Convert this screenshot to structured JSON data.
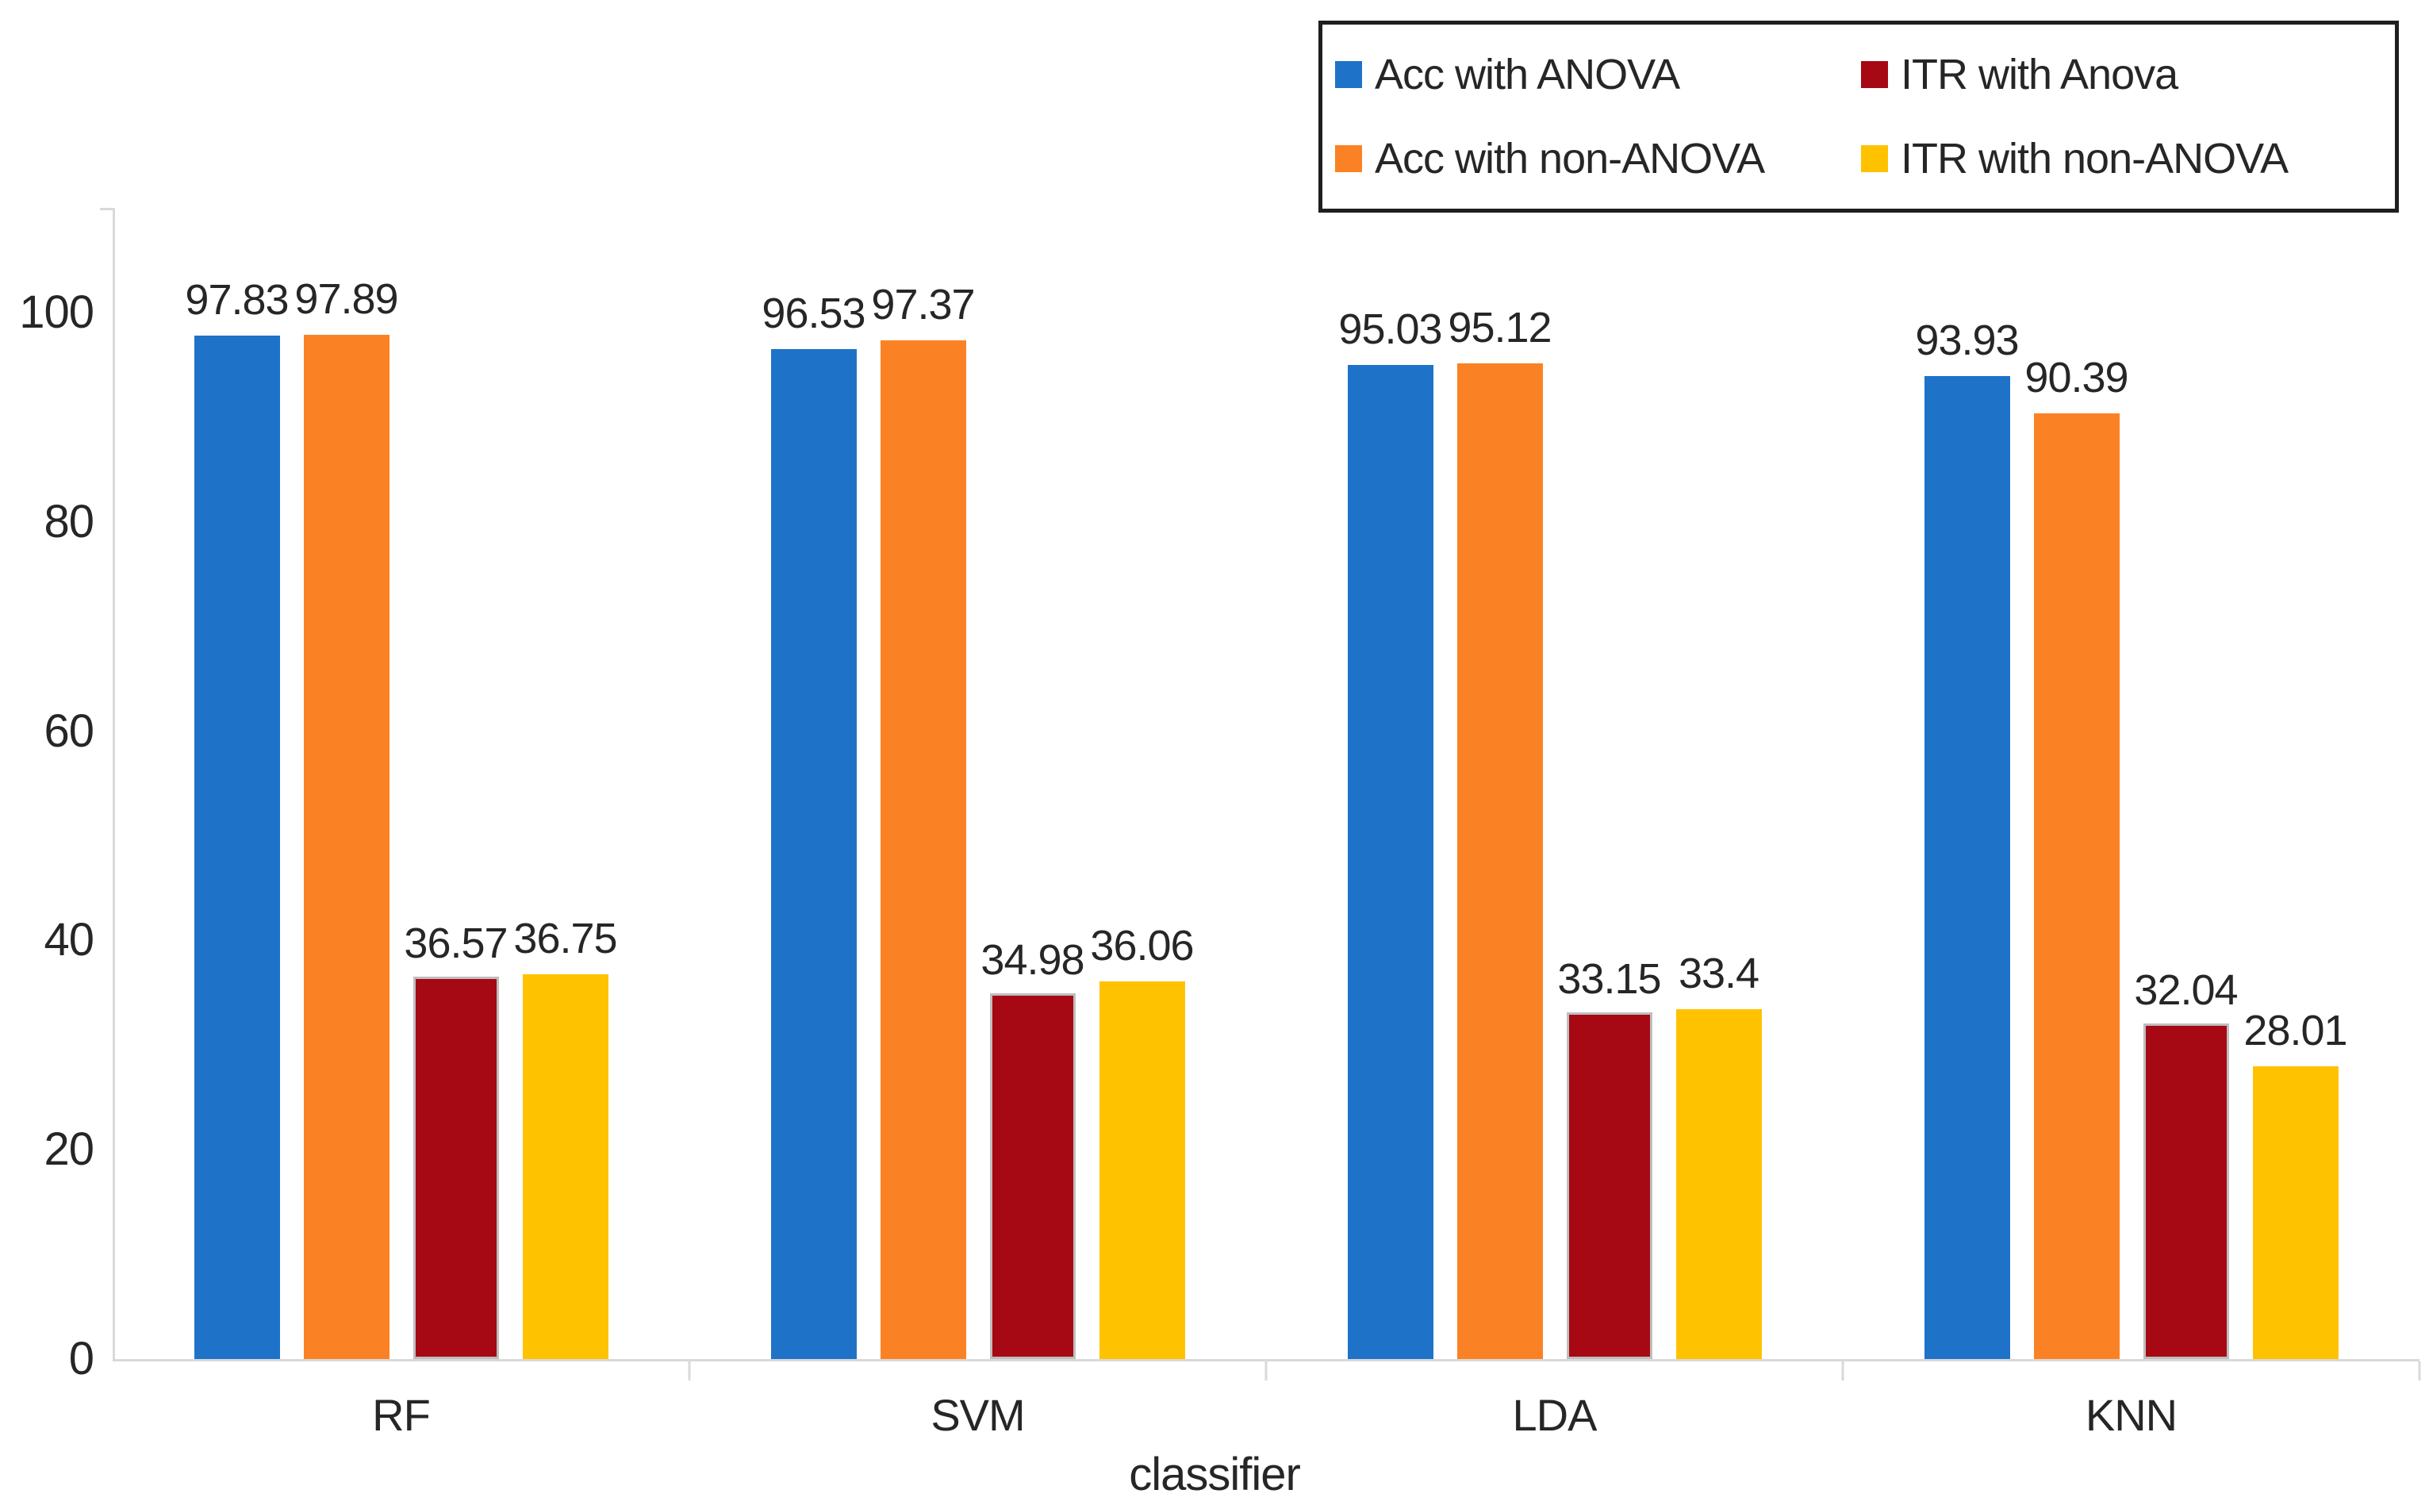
{
  "chart_data": {
    "type": "bar",
    "title": "",
    "xlabel": "classifier",
    "ylabel": "",
    "ylim": [
      0,
      110
    ],
    "yticks": [
      0,
      20,
      40,
      60,
      80,
      100
    ],
    "grid": false,
    "legend_position": "top-right",
    "categories": [
      "RF",
      "SVM",
      "LDA",
      "KNN"
    ],
    "series": [
      {
        "name": "Acc with ANOVA",
        "color": "#1E73C8",
        "values": [
          97.83,
          96.53,
          95.03,
          93.93
        ],
        "labels": [
          "97.83",
          "96.53",
          "95.03",
          "93.93"
        ]
      },
      {
        "name": "Acc with non-ANOVA",
        "color": "#FB8224",
        "values": [
          97.89,
          97.37,
          95.12,
          90.39
        ],
        "labels": [
          "97.89",
          "97.37",
          "95.12",
          "90.39"
        ]
      },
      {
        "name": "ITR with Anova",
        "color": "#A60914",
        "outline": "#BFBFBF",
        "values": [
          36.57,
          34.98,
          33.15,
          32.04
        ],
        "labels": [
          "36.57",
          "34.98",
          "33.15",
          "32.04"
        ]
      },
      {
        "name": "ITR with non-ANOVA",
        "color": "#FFC200",
        "values": [
          36.75,
          36.06,
          33.4,
          28.01
        ],
        "labels": [
          "36.75",
          "36.06",
          "33.4",
          "28.01"
        ]
      }
    ],
    "legend_display_order": [
      0,
      2,
      1,
      3
    ],
    "axis_color": "#D9D9D9",
    "text_color": "#262626"
  }
}
